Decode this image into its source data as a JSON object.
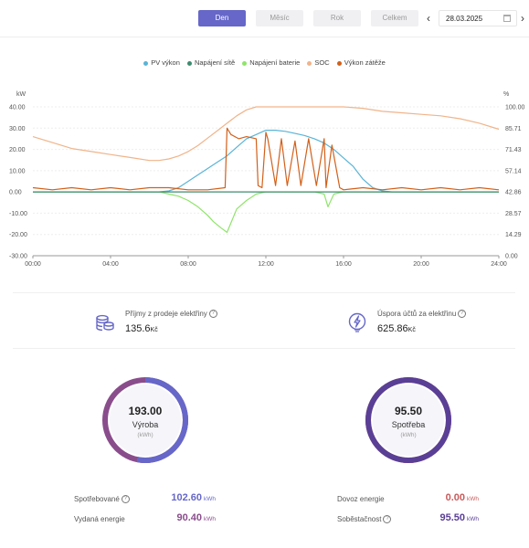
{
  "period_tabs": [
    {
      "label": "Den",
      "active": true
    },
    {
      "label": "Měsíc",
      "active": false
    },
    {
      "label": "Rok",
      "active": false
    },
    {
      "label": "Celkem",
      "active": false
    }
  ],
  "date_picker": {
    "value": "28.03.2025",
    "prev_icon": "chevron-left-icon",
    "next_icon": "chevron-right-icon",
    "calendar_icon": "calendar-icon"
  },
  "colors": {
    "accent": "#6667c8",
    "pv": "#5ab4d6",
    "grid": "#3d8c6e",
    "battery": "#8fe46a",
    "soc": "#f0b48a",
    "load": "#d2601a"
  },
  "chart_data": {
    "type": "line",
    "legend": [
      "PV výkon",
      "Napájení sítě",
      "Napájení baterie",
      "SOC",
      "Výkon zátěže"
    ],
    "legend_position": "top-center",
    "y_left_unit": "kW",
    "y_right_unit": "%",
    "y_left_ticks": [
      "40.00",
      "30.00",
      "20.00",
      "10.00",
      "0.00",
      "-10.00",
      "-20.00",
      "-30.00"
    ],
    "y_right_ticks": [
      "100.00",
      "85.71",
      "71.43",
      "57.14",
      "42.86",
      "28.57",
      "14.29",
      "0.00"
    ],
    "x_ticks": [
      "00:00",
      "04:00",
      "08:00",
      "12:00",
      "16:00",
      "20:00",
      "24:00"
    ],
    "ylim_left": [
      -30,
      40
    ],
    "ylim_right": [
      0,
      100
    ],
    "xlim_hours": [
      0,
      24
    ],
    "grid": true,
    "series": [
      {
        "name": "PV výkon",
        "axis": "left",
        "x": [
          0,
          6.5,
          7,
          7.5,
          8,
          8.5,
          9,
          9.5,
          10,
          10.5,
          11,
          11.5,
          12,
          12.5,
          13,
          13.5,
          14,
          14.5,
          15,
          15.5,
          16,
          16.5,
          17,
          17.5,
          18,
          18.5,
          24
        ],
        "y": [
          0,
          0,
          0.5,
          2,
          5,
          8,
          11,
          14,
          17,
          21,
          25,
          27,
          29,
          29,
          28.5,
          27.5,
          26.5,
          25,
          23,
          20,
          16,
          12,
          6,
          2,
          0.5,
          0,
          0
        ]
      },
      {
        "name": "Napájení sítě",
        "axis": "left",
        "x": [
          0,
          24
        ],
        "y": [
          0,
          0
        ]
      },
      {
        "name": "Napájení baterie",
        "axis": "left",
        "x": [
          0,
          6.5,
          7,
          7.5,
          8,
          8.5,
          9,
          9.3,
          9.7,
          10,
          10.5,
          11,
          11.5,
          12,
          14.5,
          15,
          15.2,
          15.5,
          16,
          17,
          17.5,
          24
        ],
        "y": [
          0,
          0,
          -1,
          -2,
          -4,
          -7,
          -11,
          -14,
          -17,
          -19,
          -8,
          -4,
          -1,
          0,
          0,
          -1,
          -7,
          -1,
          0,
          0,
          0,
          0
        ]
      },
      {
        "name": "SOC",
        "axis": "right",
        "x": [
          0,
          1,
          2,
          3,
          4,
          5,
          6,
          6.5,
          7,
          7.5,
          8,
          8.5,
          9,
          9.5,
          10,
          10.5,
          11,
          11.5,
          12,
          13,
          14,
          15,
          16,
          17,
          18,
          19,
          20,
          21,
          22,
          23,
          24
        ],
        "y": [
          80,
          76,
          72,
          70,
          68,
          66,
          64,
          64,
          65,
          67,
          70,
          74,
          79,
          84,
          89,
          94,
          98,
          100,
          100,
          100,
          100,
          100,
          100,
          99,
          97,
          96,
          95,
          94,
          92,
          89,
          85
        ]
      },
      {
        "name": "Výkon zátěže",
        "axis": "left",
        "x": [
          0,
          1,
          2,
          3,
          4,
          5,
          6,
          7,
          8,
          9,
          9.9,
          10,
          10.2,
          10.6,
          11,
          11.5,
          11.6,
          11.8,
          12,
          12.1,
          12.5,
          12.8,
          13.1,
          13.5,
          13.8,
          14.2,
          14.6,
          15,
          15.1,
          15.4,
          15.8,
          16,
          17,
          18,
          19,
          20,
          21,
          22,
          23,
          24
        ],
        "y": [
          2,
          1,
          2,
          1,
          2,
          1,
          2,
          2,
          1,
          1,
          2,
          30,
          27,
          25,
          26,
          25,
          3,
          2,
          28,
          25,
          3,
          25,
          3,
          24,
          3,
          25,
          3,
          25,
          2,
          22,
          2,
          1,
          2,
          1,
          2,
          1,
          2,
          1,
          2,
          1
        ]
      }
    ]
  },
  "summary": {
    "income_label": "Příjmy z prodeje elektřiny",
    "income_value": "135.6",
    "income_unit": "Kč",
    "savings_label": "Úspora účtů za elektřinu",
    "savings_value": "625.86",
    "savings_unit": "Kč",
    "help_icon": "question-circle-icon"
  },
  "production": {
    "value": "193.00",
    "label": "Výroba",
    "unit": "(kWh)",
    "consumed_label": "Spotřebované",
    "consumed_value": "102.60",
    "consumed_unit": "kWh",
    "exported_label": "Vydaná energie",
    "exported_value": "90.40",
    "exported_unit": "kWh",
    "consumed_fraction": 0.5316
  },
  "consumption": {
    "value": "95.50",
    "label": "Spotřeba",
    "unit": "(kWh)",
    "import_label": "Dovoz energie",
    "import_value": "0.00",
    "import_unit": "kWh",
    "self_label": "Soběstačnost",
    "self_value": "95.50",
    "self_unit": "kWh",
    "self_fraction": 1.0
  }
}
